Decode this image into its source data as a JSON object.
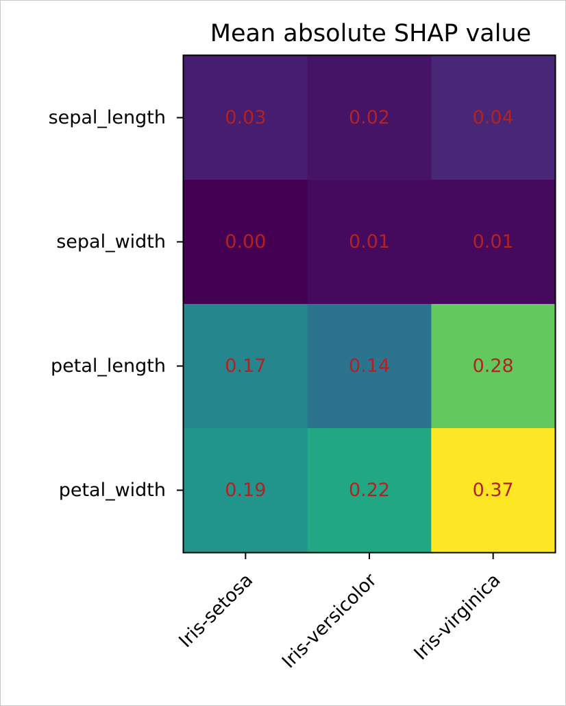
{
  "chart_data": {
    "type": "heatmap",
    "title": "Mean absolute SHAP value",
    "xlabel": "",
    "ylabel": "",
    "x_categories": [
      "Iris-setosa",
      "Iris-versicolor",
      "Iris-virginica"
    ],
    "y_categories": [
      "sepal_length",
      "sepal_width",
      "petal_length",
      "petal_width"
    ],
    "values": [
      [
        0.03,
        0.02,
        0.04
      ],
      [
        0.0,
        0.01,
        0.01
      ],
      [
        0.17,
        0.14,
        0.28
      ],
      [
        0.19,
        0.22,
        0.37
      ]
    ],
    "cell_labels": [
      [
        "0.03",
        "0.02",
        "0.04"
      ],
      [
        "0.00",
        "0.01",
        "0.01"
      ],
      [
        "0.17",
        "0.14",
        "0.28"
      ],
      [
        "0.19",
        "0.22",
        "0.37"
      ]
    ],
    "colormap": "viridis",
    "value_range": [
      0.0,
      0.37
    ],
    "annotation_color": "#b22222",
    "grid": false,
    "legend": "none"
  }
}
